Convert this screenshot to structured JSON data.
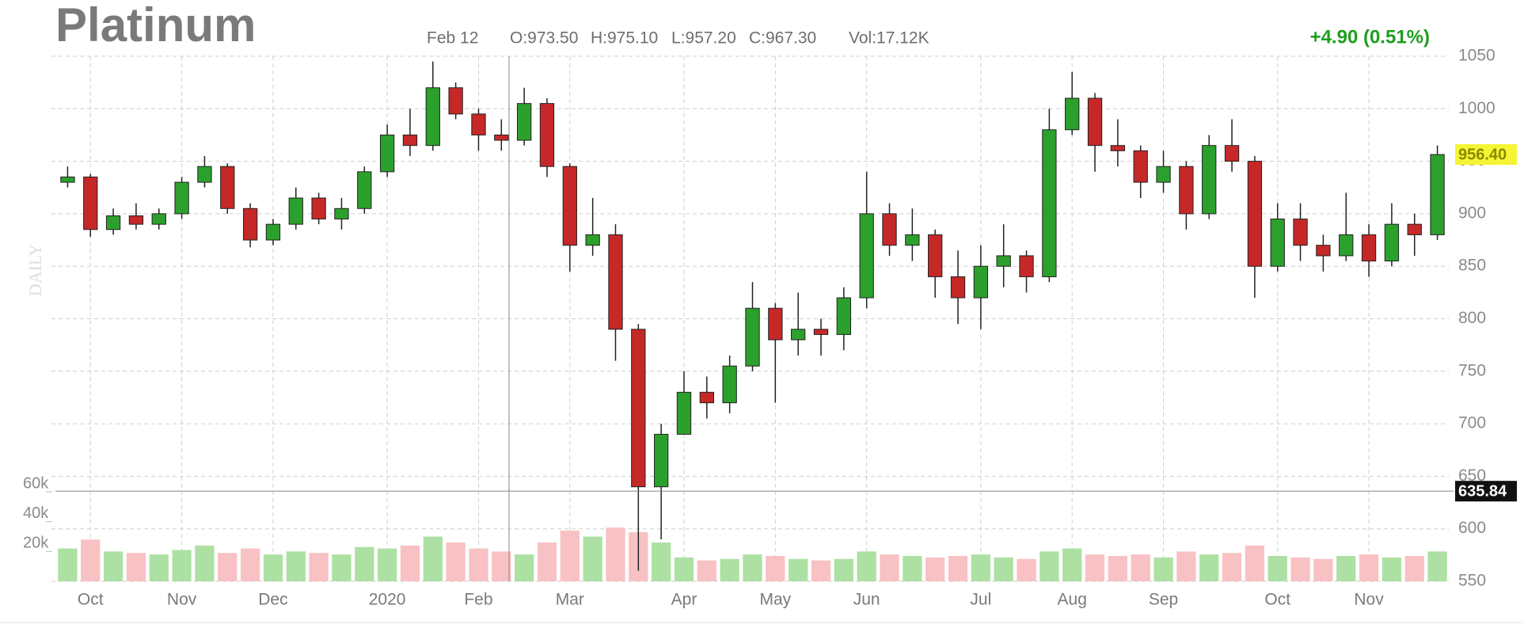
{
  "chart_data": {
    "type": "candlestick",
    "title": "Platinum",
    "watermark": "DAILY",
    "info": {
      "date": "Feb 12",
      "open": "O:973.50",
      "high": "H:975.10",
      "low": "L:957.20",
      "close": "C:967.30",
      "volume": "Vol:17.12K",
      "change": "+4.90 (0.51%)"
    },
    "categories": [
      null,
      "Oct",
      null,
      null,
      null,
      "Nov",
      null,
      null,
      null,
      "Dec",
      null,
      null,
      null,
      null,
      "2020",
      null,
      null,
      null,
      "Feb",
      null,
      null,
      null,
      "Mar",
      null,
      null,
      null,
      null,
      "Apr",
      null,
      null,
      null,
      "May",
      null,
      null,
      null,
      "Jun",
      null,
      null,
      null,
      null,
      "Jul",
      null,
      null,
      null,
      "Aug",
      null,
      null,
      null,
      "Sep",
      null,
      null,
      null,
      null,
      "Oct",
      null,
      null,
      null,
      "Nov",
      null,
      null,
      null
    ],
    "open": [
      930,
      935,
      885,
      898,
      890,
      900,
      930,
      945,
      905,
      875,
      890,
      915,
      895,
      905,
      940,
      975,
      965,
      1020,
      995,
      975,
      970,
      1005,
      945,
      870,
      880,
      790,
      640,
      690,
      730,
      720,
      755,
      810,
      780,
      790,
      785,
      820,
      900,
      870,
      880,
      840,
      820,
      850,
      860,
      840,
      980,
      1010,
      965,
      960,
      930,
      945,
      900,
      965,
      950,
      850,
      895,
      870,
      860,
      880,
      855,
      890,
      880
    ],
    "high": [
      945,
      938,
      905,
      910,
      905,
      935,
      955,
      948,
      910,
      895,
      925,
      920,
      915,
      945,
      985,
      1000,
      1045,
      1025,
      1000,
      990,
      1020,
      1010,
      948,
      915,
      890,
      795,
      700,
      750,
      745,
      765,
      835,
      815,
      825,
      800,
      830,
      940,
      910,
      905,
      885,
      865,
      870,
      890,
      865,
      1000,
      1035,
      1015,
      990,
      965,
      960,
      950,
      975,
      990,
      955,
      910,
      910,
      880,
      920,
      890,
      910,
      900,
      965
    ],
    "low": [
      925,
      878,
      880,
      885,
      885,
      895,
      925,
      900,
      868,
      870,
      885,
      890,
      885,
      900,
      935,
      955,
      960,
      990,
      960,
      960,
      965,
      935,
      845,
      860,
      760,
      560,
      590,
      690,
      705,
      710,
      750,
      720,
      765,
      765,
      770,
      810,
      860,
      855,
      820,
      795,
      790,
      830,
      825,
      835,
      975,
      940,
      945,
      915,
      920,
      885,
      895,
      940,
      820,
      845,
      855,
      845,
      855,
      840,
      850,
      860,
      875
    ],
    "close": [
      935,
      885,
      898,
      890,
      900,
      930,
      945,
      905,
      875,
      890,
      915,
      895,
      905,
      940,
      975,
      965,
      1020,
      995,
      975,
      970,
      1005,
      945,
      870,
      880,
      790,
      640,
      690,
      730,
      720,
      755,
      810,
      780,
      790,
      785,
      820,
      900,
      870,
      880,
      840,
      820,
      850,
      860,
      840,
      980,
      1010,
      965,
      960,
      930,
      945,
      900,
      965,
      950,
      850,
      895,
      870,
      860,
      880,
      855,
      890,
      880,
      956.4
    ],
    "up_color": "#2ca02c",
    "down_color": "#c62828",
    "ylim": [
      550,
      1050
    ],
    "yticks": [
      550,
      600,
      650,
      700,
      750,
      800,
      850,
      900,
      950,
      1000,
      1050
    ],
    "grid": true,
    "last_price": {
      "value": 956.4,
      "label": "956.40"
    },
    "cursor_price": 635.84,
    "volume": {
      "values": [
        22000,
        28000,
        20000,
        19000,
        18000,
        21000,
        24000,
        19000,
        22000,
        18000,
        20000,
        19000,
        18000,
        23000,
        22000,
        24000,
        30000,
        26000,
        22000,
        20000,
        18000,
        26000,
        34000,
        30000,
        36000,
        33000,
        26000,
        16000,
        14000,
        15000,
        18000,
        17000,
        15000,
        14000,
        15000,
        20000,
        18000,
        17000,
        16000,
        17000,
        18000,
        16000,
        15000,
        20000,
        22000,
        18000,
        17000,
        18000,
        16000,
        20000,
        18000,
        19000,
        24000,
        17000,
        16000,
        15000,
        17000,
        18000,
        16000,
        17000,
        20000
      ],
      "up_color": "#ade0a3",
      "down_color": "#f8c1c4",
      "ylim": [
        0,
        60000
      ],
      "yticks": [
        {
          "value": 20000,
          "label": "20k"
        },
        {
          "value": 40000,
          "label": "40k"
        },
        {
          "value": 60000,
          "label": "60k"
        }
      ]
    }
  }
}
